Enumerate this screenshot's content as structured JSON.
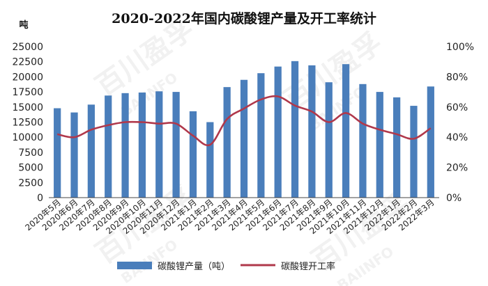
{
  "chart_data": {
    "type": "bar",
    "title": "2020-2022年国内碳酸锂产量及开工率统计",
    "y_unit_label": "吨",
    "categories": [
      "2020年5月",
      "2020年6月",
      "2020年7月",
      "2020年8月",
      "2020年9月",
      "2020年10月",
      "2020年11月",
      "2020年12月",
      "2021年1月",
      "2021年2月",
      "2021年3月",
      "2021年4月",
      "2021年5月",
      "2021年6月",
      "2021年7月",
      "2021年8月",
      "2021年9月",
      "2021年10月",
      "2021年11月",
      "2021年12月",
      "2022年1月",
      "2022年2月",
      "2022年3月"
    ],
    "series": [
      {
        "name": "碳酸锂产量（吨）",
        "type": "bar",
        "axis": "left",
        "color": "#4a7ebb",
        "values": [
          14800,
          14100,
          15400,
          16900,
          17300,
          17400,
          17600,
          17500,
          14300,
          12500,
          18300,
          19500,
          20600,
          21700,
          22600,
          21900,
          19100,
          22100,
          18800,
          17500,
          16600,
          15200,
          18400
        ]
      },
      {
        "name": "碳酸锂开工率",
        "type": "line",
        "axis": "right",
        "color": "#b0384b",
        "values": [
          0.42,
          0.4,
          0.45,
          0.48,
          0.5,
          0.5,
          0.49,
          0.49,
          0.41,
          0.35,
          0.52,
          0.59,
          0.65,
          0.67,
          0.61,
          0.57,
          0.5,
          0.56,
          0.49,
          0.45,
          0.42,
          0.39,
          0.46
        ]
      }
    ],
    "y_left": {
      "min": 0,
      "max": 25000,
      "step": 2500,
      "tick_labels": [
        "0",
        "2500",
        "5000",
        "7500",
        "10000",
        "12500",
        "15000",
        "17500",
        "20000",
        "22500",
        "25000"
      ]
    },
    "y_right": {
      "min": 0,
      "max": 1,
      "step": 0.2,
      "tick_labels": [
        "0%",
        "20%",
        "40%",
        "60%",
        "80%",
        "100%"
      ]
    },
    "legend_position": "bottom",
    "grid": false,
    "watermark_text": [
      "百川盈孚",
      "BAIINFO"
    ]
  }
}
